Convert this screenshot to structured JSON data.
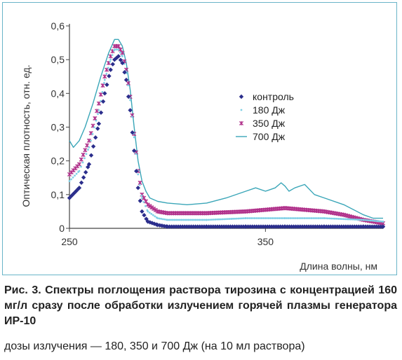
{
  "chart_data": {
    "type": "line",
    "title": "",
    "xlabel": "Длина волны, нм",
    "ylabel": "Оптическая плотность, отн. ед.",
    "xlim": [
      250,
      410
    ],
    "ylim": [
      0,
      0.6
    ],
    "xticks": [
      "250",
      "350"
    ],
    "yticks": [
      "0",
      "0,1",
      "0,2",
      "0,3",
      "0,4",
      "0,5",
      "0,6"
    ],
    "grid": false,
    "legend_position": "center-right",
    "series": [
      {
        "name": "контроль",
        "color": "#2b2e8c",
        "marker": "diamond",
        "x": [
          250,
          255,
          260,
          265,
          268,
          271,
          273,
          275,
          277,
          279,
          281,
          283,
          285,
          287,
          290,
          295,
          300,
          320,
          340,
          360,
          380,
          400,
          410
        ],
        "y": [
          0.09,
          0.12,
          0.19,
          0.31,
          0.4,
          0.47,
          0.5,
          0.51,
          0.49,
          0.44,
          0.35,
          0.23,
          0.12,
          0.05,
          0.02,
          0.01,
          0.005,
          0.005,
          0.005,
          0.005,
          0.005,
          0.005,
          0.005
        ]
      },
      {
        "name": "180 Дж",
        "color": "#7fd0e6",
        "marker": "dot",
        "x": [
          250,
          255,
          260,
          265,
          268,
          271,
          273,
          275,
          277,
          279,
          281,
          283,
          285,
          287,
          290,
          295,
          300,
          320,
          340,
          360,
          380,
          400,
          410
        ],
        "y": [
          0.14,
          0.17,
          0.24,
          0.35,
          0.44,
          0.5,
          0.53,
          0.53,
          0.51,
          0.46,
          0.38,
          0.27,
          0.16,
          0.09,
          0.05,
          0.03,
          0.025,
          0.025,
          0.03,
          0.03,
          0.03,
          0.025,
          0.02
        ]
      },
      {
        "name": "350 Дж",
        "color": "#b0308a",
        "marker": "star",
        "x": [
          250,
          255,
          260,
          265,
          268,
          271,
          273,
          275,
          277,
          279,
          281,
          283,
          285,
          287,
          290,
          295,
          300,
          320,
          340,
          350,
          360,
          370,
          380,
          390,
          400,
          410
        ],
        "y": [
          0.16,
          0.19,
          0.26,
          0.37,
          0.45,
          0.51,
          0.54,
          0.54,
          0.52,
          0.47,
          0.39,
          0.28,
          0.17,
          0.1,
          0.07,
          0.05,
          0.045,
          0.045,
          0.05,
          0.055,
          0.06,
          0.055,
          0.05,
          0.04,
          0.025,
          0.015
        ]
      },
      {
        "name": "700 Дж",
        "color": "#3aa6b8",
        "marker": "line",
        "x": [
          250,
          252,
          255,
          258,
          262,
          266,
          270,
          273,
          275,
          277,
          279,
          281,
          283,
          285,
          287,
          289,
          291,
          295,
          300,
          310,
          320,
          330,
          340,
          345,
          350,
          355,
          358,
          360,
          362,
          365,
          370,
          375,
          380,
          390,
          400,
          405,
          410
        ],
        "y": [
          0.26,
          0.24,
          0.26,
          0.3,
          0.37,
          0.45,
          0.52,
          0.56,
          0.56,
          0.54,
          0.49,
          0.41,
          0.3,
          0.2,
          0.14,
          0.11,
          0.09,
          0.08,
          0.075,
          0.07,
          0.075,
          0.09,
          0.11,
          0.12,
          0.11,
          0.12,
          0.135,
          0.125,
          0.11,
          0.12,
          0.13,
          0.1,
          0.09,
          0.07,
          0.04,
          0.03,
          0.03
        ]
      }
    ]
  },
  "caption": {
    "title": "Рис. 3. Спектры поглощения раствора тирозина с концентрацией 160 мг/л сразу после обработки излучением горячей плазмы генератора ИР-10",
    "note": "дозы излучения — 180, 350 и 700 Дж (на 10 мл раствора)"
  }
}
